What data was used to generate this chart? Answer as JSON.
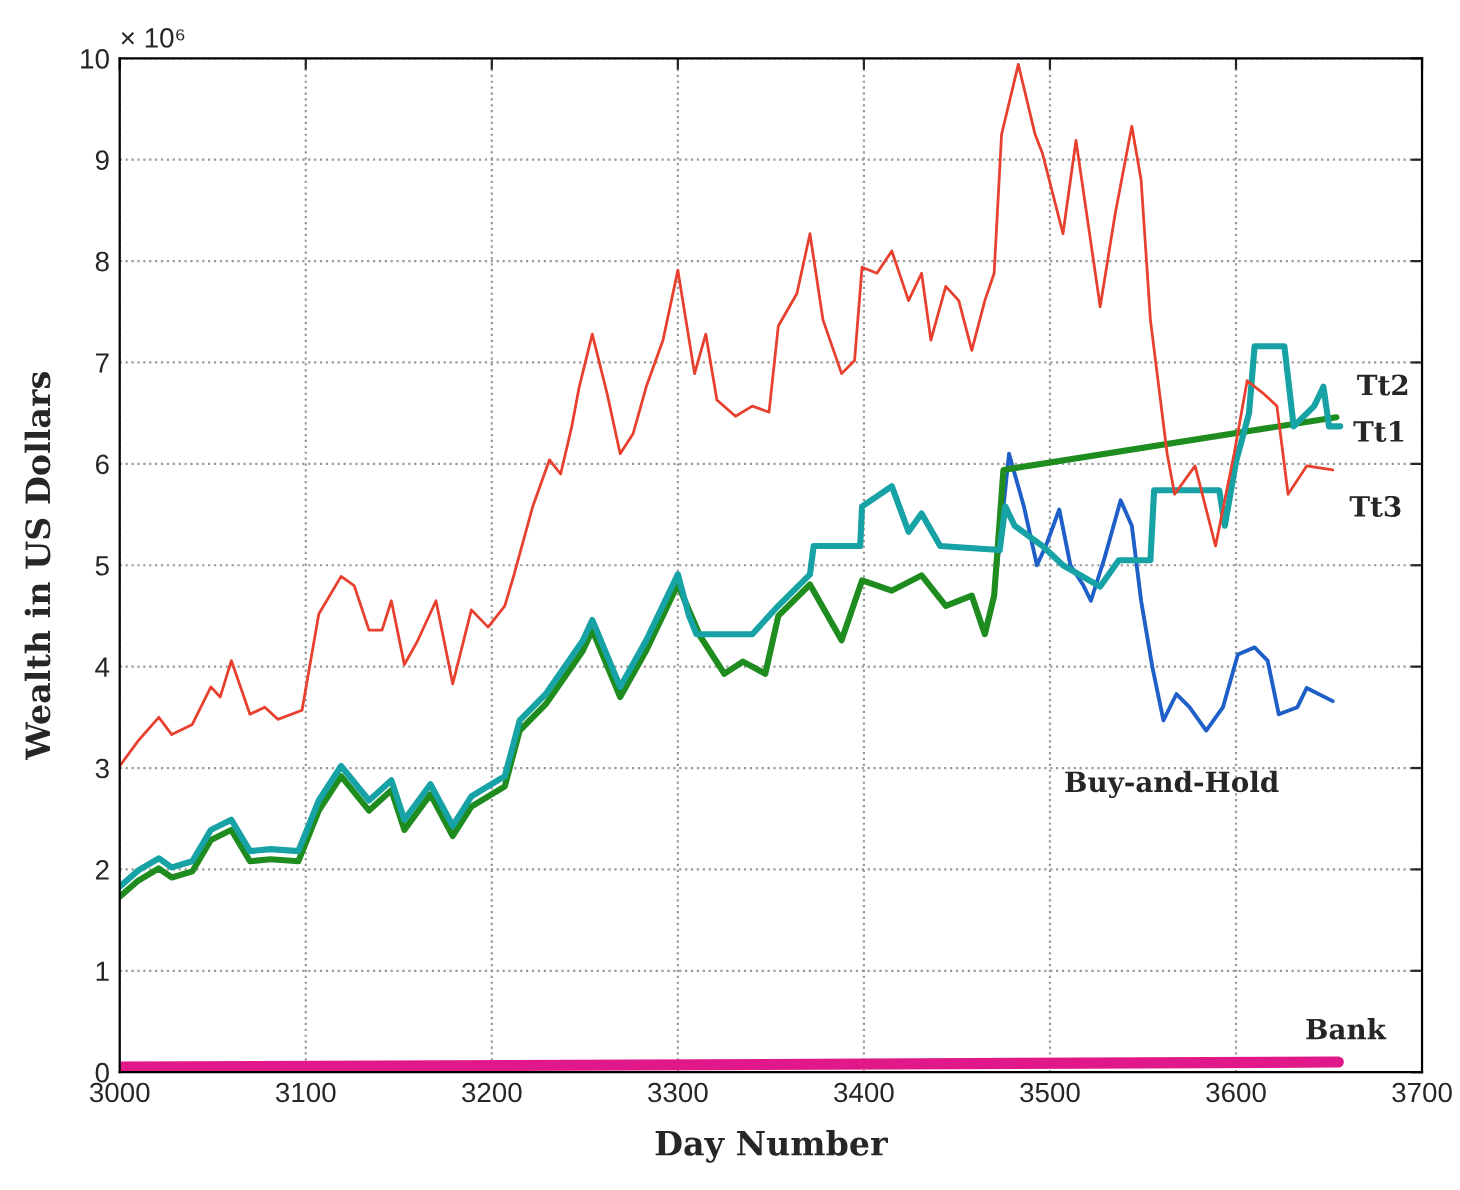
{
  "chart_data": {
    "type": "line",
    "xlabel": "Day Number",
    "ylabel": "Wealth in US Dollars",
    "annotations": [
      "× 10⁶"
    ],
    "xlim": [
      3000,
      3700
    ],
    "xticks": [
      3000,
      3100,
      3200,
      3300,
      3400,
      3500,
      3600,
      3700
    ],
    "ylim": [
      0,
      10
    ],
    "yticks": [
      0,
      1,
      2,
      3,
      4,
      5,
      6,
      7,
      8,
      9,
      10
    ],
    "grid": true,
    "legend": false,
    "marker": "none",
    "line_style": "solid",
    "series": [
      {
        "name": "Buy-and-Hold",
        "color": "#1f5fc8",
        "x": [
          3470,
          3478,
          3486,
          3493,
          3498,
          3505,
          3511,
          3518,
          3522,
          3529,
          3538,
          3544,
          3549,
          3555,
          3561,
          3568,
          3575,
          3584,
          3593,
          3601,
          3610,
          3617,
          3623,
          3633,
          3638,
          3652
        ],
        "values": [
          4.7,
          6.1,
          5.58,
          5.0,
          5.2,
          5.55,
          5.0,
          4.8,
          4.65,
          5.05,
          5.64,
          5.39,
          4.65,
          4.0,
          3.47,
          3.73,
          3.6,
          3.37,
          3.6,
          4.12,
          4.19,
          4.06,
          3.53,
          3.6,
          3.79,
          3.66
        ]
      },
      {
        "name": "Tt1",
        "color": "#1e8c1e",
        "x": [
          3000,
          3010,
          3021,
          3028,
          3039,
          3049,
          3060,
          3070,
          3081,
          3096,
          3107,
          3119,
          3134,
          3146,
          3153,
          3167,
          3179,
          3189,
          3207,
          3215,
          3229,
          3243,
          3249,
          3254,
          3269,
          3283,
          3300,
          3312,
          3325,
          3335,
          3347,
          3354,
          3371,
          3388,
          3399,
          3415,
          3431,
          3444,
          3458,
          3465,
          3470,
          3475,
          3654
        ],
        "values": [
          1.73,
          1.89,
          2.01,
          1.92,
          1.98,
          2.29,
          2.39,
          2.08,
          2.1,
          2.08,
          2.58,
          2.92,
          2.58,
          2.78,
          2.39,
          2.74,
          2.33,
          2.62,
          2.82,
          3.37,
          3.63,
          4.0,
          4.16,
          4.36,
          3.7,
          4.16,
          4.81,
          4.3,
          3.93,
          4.05,
          3.93,
          4.5,
          4.81,
          4.26,
          4.85,
          4.75,
          4.9,
          4.6,
          4.7,
          4.32,
          4.7,
          5.94,
          6.46
        ]
      },
      {
        "name": "Tt2",
        "color": "#17a2a5",
        "x": [
          3000,
          3010,
          3021,
          3028,
          3039,
          3049,
          3060,
          3070,
          3081,
          3096,
          3107,
          3119,
          3134,
          3146,
          3153,
          3167,
          3179,
          3189,
          3207,
          3215,
          3229,
          3243,
          3249,
          3254,
          3269,
          3283,
          3300,
          3306,
          3310,
          3340,
          3354,
          3371,
          3373,
          3398,
          3399,
          3415,
          3424,
          3431,
          3441,
          3473,
          3476,
          3481,
          3496,
          3507,
          3527,
          3537,
          3554,
          3556,
          3591,
          3594,
          3600,
          3607,
          3610,
          3626,
          3631,
          3642,
          3647,
          3650,
          3656
        ],
        "values": [
          1.83,
          1.99,
          2.11,
          2.02,
          2.08,
          2.39,
          2.49,
          2.18,
          2.2,
          2.18,
          2.68,
          3.02,
          2.68,
          2.88,
          2.49,
          2.84,
          2.43,
          2.72,
          2.92,
          3.47,
          3.73,
          4.1,
          4.26,
          4.46,
          3.8,
          4.26,
          4.91,
          4.5,
          4.32,
          4.32,
          4.6,
          4.91,
          5.19,
          5.19,
          5.58,
          5.78,
          5.33,
          5.51,
          5.19,
          5.15,
          5.58,
          5.39,
          5.19,
          5.0,
          4.79,
          5.05,
          5.05,
          5.74,
          5.74,
          5.39,
          6.02,
          6.5,
          7.16,
          7.16,
          6.37,
          6.57,
          6.76,
          6.37,
          6.37
        ]
      },
      {
        "name": "Tt3",
        "color": "#e8402e",
        "x": [
          3000,
          3010,
          3021,
          3028,
          3039,
          3049,
          3054,
          3060,
          3070,
          3078,
          3085,
          3098,
          3107,
          3119,
          3126,
          3134,
          3141,
          3146,
          3153,
          3160,
          3170,
          3179,
          3189,
          3198,
          3207,
          3212,
          3222,
          3231,
          3237,
          3243,
          3247,
          3254,
          3262,
          3269,
          3276,
          3283,
          3292,
          3300,
          3309,
          3315,
          3321,
          3331,
          3340,
          3349,
          3354,
          3364,
          3371,
          3378,
          3388,
          3395,
          3399,
          3407,
          3415,
          3424,
          3431,
          3436,
          3444,
          3451,
          3458,
          3465,
          3470,
          3474,
          3483,
          3492,
          3496,
          3507,
          3514,
          3527,
          3535,
          3544,
          3549,
          3554,
          3563,
          3567,
          3578,
          3589,
          3599,
          3606,
          3615,
          3622,
          3628,
          3638,
          3652
        ],
        "values": [
          3.02,
          3.27,
          3.5,
          3.33,
          3.43,
          3.8,
          3.7,
          4.06,
          3.53,
          3.6,
          3.48,
          3.57,
          4.52,
          4.89,
          4.8,
          4.36,
          4.36,
          4.65,
          4.02,
          4.25,
          4.65,
          3.83,
          4.56,
          4.39,
          4.6,
          4.91,
          5.58,
          6.04,
          5.9,
          6.37,
          6.76,
          7.28,
          6.69,
          6.1,
          6.3,
          6.76,
          7.22,
          7.91,
          6.89,
          7.28,
          6.63,
          6.47,
          6.57,
          6.51,
          7.36,
          7.68,
          8.27,
          7.42,
          6.89,
          7.02,
          7.94,
          7.88,
          8.1,
          7.61,
          7.88,
          7.22,
          7.75,
          7.61,
          7.12,
          7.61,
          7.88,
          9.25,
          9.94,
          9.25,
          9.06,
          8.27,
          9.19,
          7.55,
          8.46,
          9.33,
          8.8,
          7.42,
          6.1,
          5.7,
          5.98,
          5.19,
          6.1,
          6.82,
          6.69,
          6.57,
          5.7,
          5.98,
          5.94
        ]
      },
      {
        "name": "Bank",
        "color": "#e0188a",
        "x": [
          3000,
          3655
        ],
        "values": [
          0.05,
          0.1
        ]
      }
    ]
  }
}
